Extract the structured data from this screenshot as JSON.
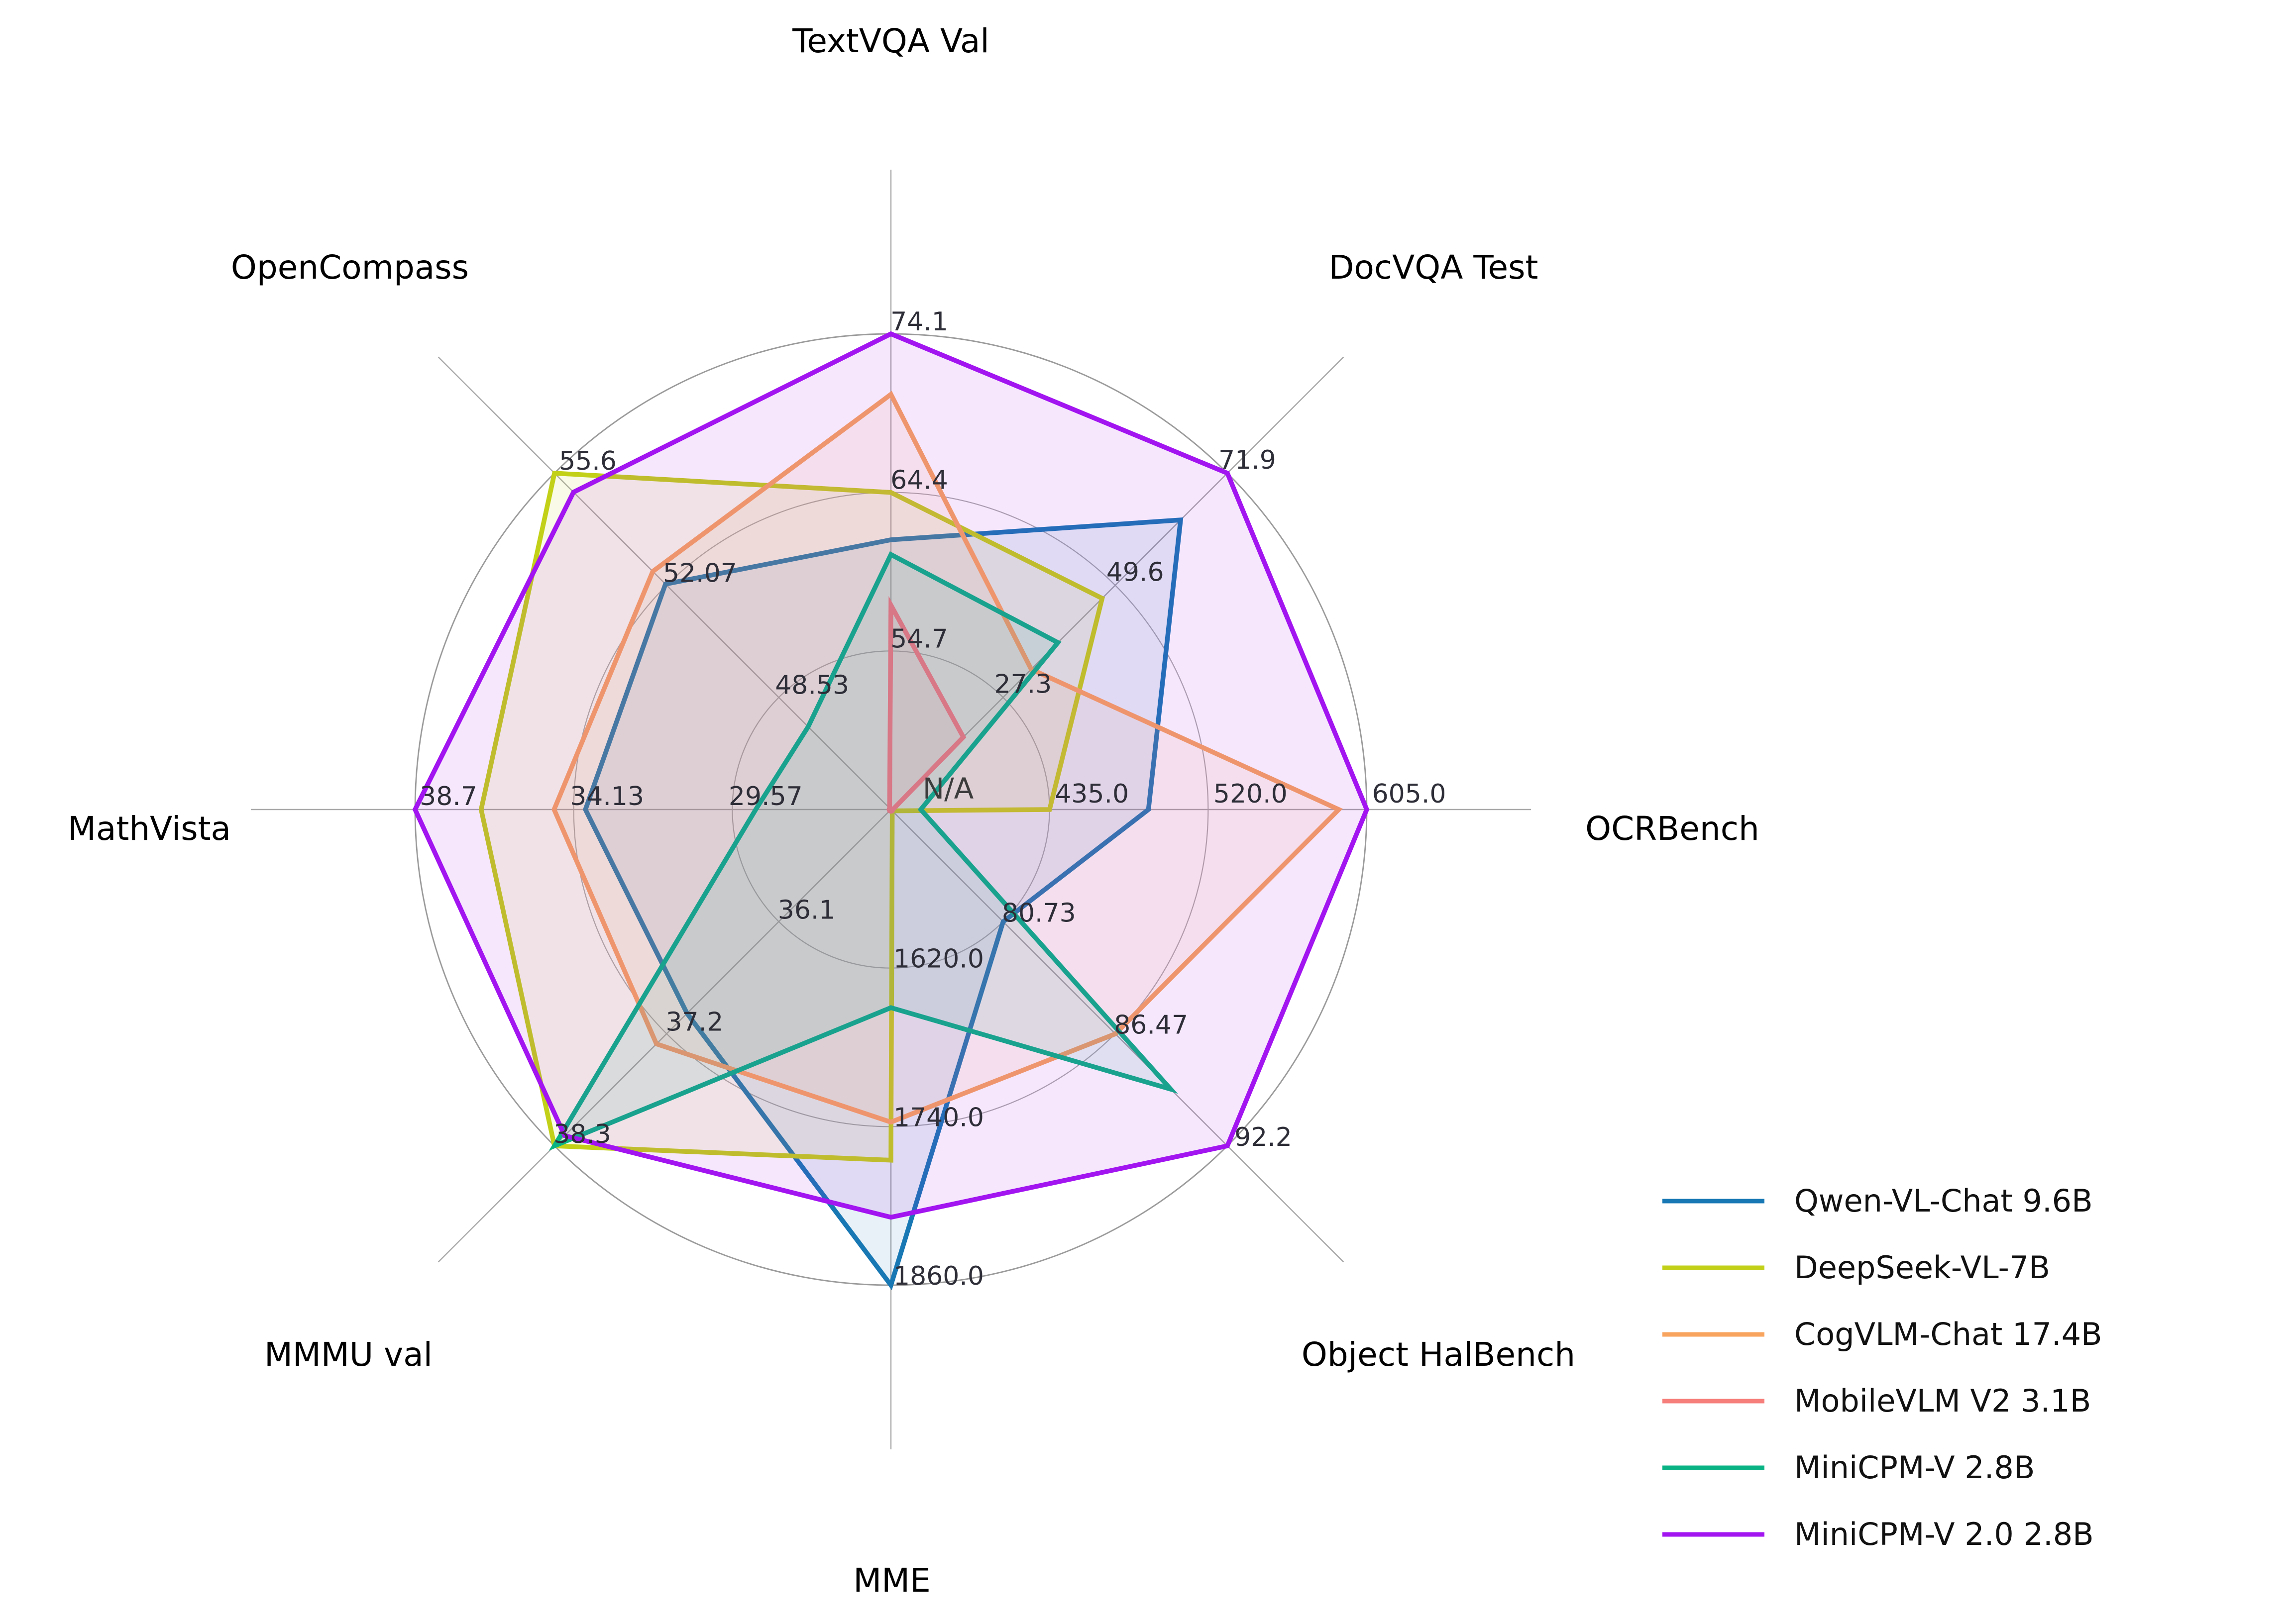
{
  "chart_data": {
    "type": "radar",
    "description": "Multi-scale radar chart comparing six multimodal LLMs on eight benchmarks; each axis has its own linear scale with three labeled grid rings (inner, middle, outer). Outer ring equals the max plotted value of that axis.",
    "grid": {
      "rings": 3,
      "ring_fractions": [
        0.3333,
        0.6667,
        1.0
      ],
      "shape": "circle",
      "legend_position": "lower right"
    },
    "axes": [
      {
        "label": "TextVQA Val",
        "tick_labels": [
          "54.7",
          "64.4",
          "74.1"
        ],
        "ticks": [
          54.7,
          64.4,
          74.1
        ]
      },
      {
        "label": "DocVQA Test",
        "tick_labels": [
          "27.3",
          "49.6",
          "71.9"
        ],
        "ticks": [
          27.3,
          49.6,
          71.9
        ]
      },
      {
        "label": "OCRBench",
        "tick_labels": [
          "435.0",
          "520.0",
          "605.0"
        ],
        "ticks": [
          435.0,
          520.0,
          605.0
        ]
      },
      {
        "label": "Object HalBench",
        "tick_labels": [
          "80.73",
          "86.47",
          "92.2"
        ],
        "ticks": [
          80.73,
          86.47,
          92.2
        ]
      },
      {
        "label": "MME",
        "tick_labels": [
          "1620.0",
          "1740.0",
          "1860.0"
        ],
        "ticks": [
          1620.0,
          1740.0,
          1860.0
        ]
      },
      {
        "label": "MMMU val",
        "tick_labels": [
          "36.1",
          "37.2",
          "38.3"
        ],
        "ticks": [
          36.1,
          37.2,
          38.3
        ]
      },
      {
        "label": "MathVista",
        "tick_labels": [
          "29.57",
          "34.13",
          "38.7"
        ],
        "ticks": [
          29.57,
          34.13,
          38.7
        ]
      },
      {
        "label": "OpenCompass",
        "tick_labels": [
          "48.53",
          "52.07",
          "55.6"
        ],
        "ticks": [
          48.53,
          52.07,
          55.6
        ]
      }
    ],
    "series": [
      {
        "name": "Qwen-VL-Chat 9.6B",
        "color": "#1878B4",
        "values": [
          61.5,
          62.6,
          488,
          80.73,
          1860.0,
          37.0,
          33.8,
          52.1
        ]
      },
      {
        "name": "DeepSeek-VL-7B",
        "color": "#C2D118",
        "values": [
          64.4,
          47.0,
          435,
          null,
          1765.4,
          38.3,
          36.8,
          55.6
        ]
      },
      {
        "name": "CogVLM-Chat 17.4B",
        "color": "#F8A45F",
        "values": [
          70.4,
          32.9,
          590,
          86.47,
          1736.6,
          37.3,
          34.7,
          52.5
        ]
      },
      {
        "name": "MobileVLM V2 3.1B",
        "color": "#F67E7B",
        "values": [
          57.5,
          19.4,
          null,
          null,
          null,
          null,
          null,
          null
        ]
      },
      {
        "name": "MiniCPM-V 2.8B",
        "color": "#0AB384",
        "values": [
          60.6,
          38.2,
          366,
          89.3,
          1650.0,
          38.3,
          28.9,
          47.6
        ]
      },
      {
        "name": "MiniCPM-V 2.0 2.8B",
        "color": "#A214F0",
        "values": [
          74.1,
          71.9,
          605,
          92.2,
          1808.6,
          38.2,
          38.7,
          55.0
        ]
      }
    ],
    "annotations": [
      {
        "text": "N/A",
        "meaning": "missing value near chart center (MobileVLM V2 OCRBench)"
      }
    ],
    "colors": {
      "grid_ring": "#ACACAC",
      "grid_ring_outer": "#9B9B9B",
      "spoke": "#A8A8A8",
      "tick_label": "#2E2E38",
      "axis_title": "#000000",
      "na_label": "#3C3C3C",
      "legend_text": "#111111",
      "background": "#FFFFFF"
    }
  }
}
